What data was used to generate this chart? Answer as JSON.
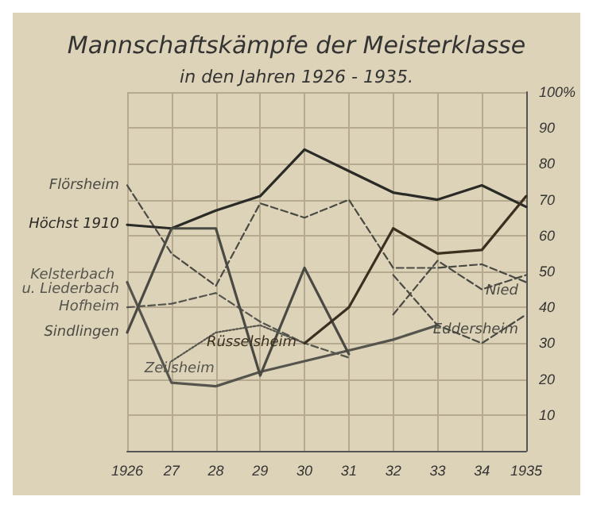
{
  "chart_data": {
    "type": "line",
    "title": "Mannschaftskämpfe der Meisterklasse",
    "subtitle": "in den Jahren 1926 - 1935.",
    "categories": [
      "1926",
      "27",
      "28",
      "29",
      "30",
      "31",
      "32",
      "33",
      "34",
      "1935"
    ],
    "ylim": [
      0,
      100
    ],
    "yticks": [
      10,
      20,
      30,
      40,
      50,
      60,
      70,
      80,
      90,
      {
        "value": 100,
        "label": "100%"
      }
    ],
    "grid": true,
    "legend": false,
    "marker": "none",
    "series": [
      {
        "name": "Flörsheim",
        "color": "#4a4a44",
        "line_style": "dashed",
        "values": [
          74,
          55,
          46,
          69,
          65,
          70,
          51,
          51,
          52,
          47
        ]
      },
      {
        "name": "Höchst 1910",
        "color": "#2a2a26",
        "line_style": "solid",
        "values": [
          63,
          62,
          67,
          71,
          84,
          78,
          72,
          70,
          74,
          68
        ]
      },
      {
        "name": "Kelsterbach u. Liederbach",
        "color": "#55554e",
        "line_style": "solid",
        "values": [
          47,
          19,
          18,
          22,
          25,
          28,
          31,
          35,
          null,
          null
        ]
      },
      {
        "name": "Hofheim",
        "color": "#55554e",
        "line_style": "dashed",
        "values": [
          40,
          41,
          44,
          36,
          30,
          26,
          null,
          null,
          null,
          null
        ]
      },
      {
        "name": "Sindlingen",
        "color": "#4a4a44",
        "line_style": "solid",
        "values": [
          33,
          62,
          62,
          21,
          51,
          27,
          null,
          null,
          null,
          null
        ]
      },
      {
        "name": "Zeilsheim",
        "color": "#55554e",
        "line_style": "dotted",
        "values": [
          null,
          25,
          33,
          35,
          30,
          null,
          null,
          null,
          null,
          null
        ]
      },
      {
        "name": "Rüsselsheim",
        "color": "#3b3020",
        "line_style": "solid",
        "values": [
          null,
          null,
          null,
          null,
          30,
          40,
          62,
          55,
          56,
          71
        ]
      },
      {
        "name": "Nied",
        "color": "#4a4a44",
        "line_style": "dashed",
        "values": [
          null,
          null,
          null,
          null,
          null,
          null,
          38,
          53,
          45,
          49
        ]
      },
      {
        "name": "Eddersheim",
        "color": "#4a4a44",
        "line_style": "dashed",
        "values": [
          null,
          null,
          null,
          null,
          null,
          null,
          49,
          35,
          30,
          38
        ]
      }
    ]
  }
}
